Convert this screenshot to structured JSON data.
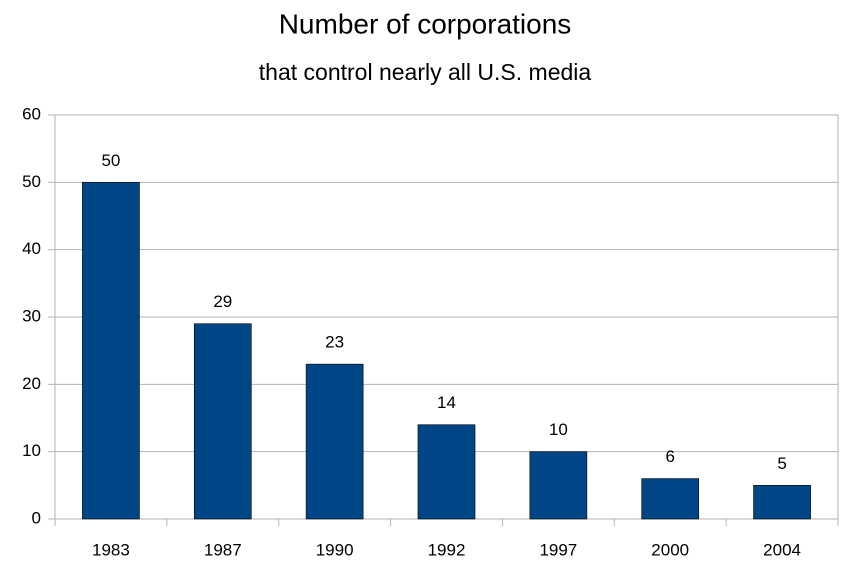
{
  "chart_data": {
    "type": "bar",
    "title": "Number of corporations",
    "subtitle": "that control nearly all U.S. media",
    "categories": [
      "1983",
      "1987",
      "1990",
      "1992",
      "1997",
      "2000",
      "2004"
    ],
    "values": [
      50,
      29,
      23,
      14,
      10,
      6,
      5
    ],
    "color": "#004586",
    "ylim": [
      0,
      60
    ],
    "yticks": [
      0,
      10,
      20,
      30,
      40,
      50,
      60
    ],
    "grid": true
  }
}
